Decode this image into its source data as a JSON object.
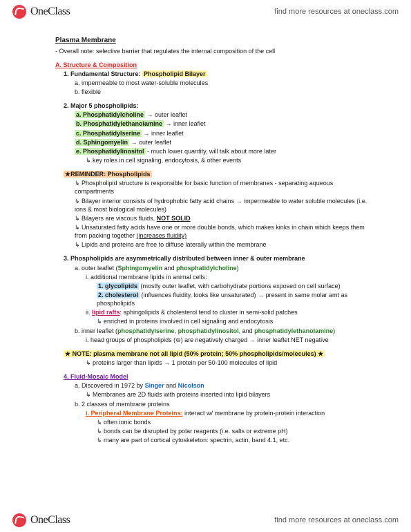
{
  "brand": {
    "name": "OneClass",
    "tagline": "find more resources at oneclass.com"
  },
  "title": "Plasma Membrane",
  "overall": "- Overall note: selective barrier that regulates the internal composition of the cell",
  "A": {
    "heading": "A. Structure & Composition",
    "one": {
      "label": "1. Fundamental Structure:",
      "hl": "Phospholipid Bilayer",
      "a": "a. impermeable to most water-soluble molecules",
      "b": "b. flexible"
    },
    "two": {
      "label": "2. Major 5 phospholipids:",
      "a": {
        "name": "a. Phosphatidylcholine",
        "arrow": "→ outer leaflet"
      },
      "b": {
        "name": "b. Phosphatidylethanolamine",
        "arrow": "→ inner leaflet"
      },
      "c": {
        "name": "c. Phosphatidylserine",
        "arrow": "→ inner leaflet"
      },
      "d": {
        "name": "d. Sphingomyelin",
        "arrow": "→ outer leaflet"
      },
      "e": {
        "name": "e. Phosphatidylinositol",
        "note": "- much lower quantity, will talk about more later"
      },
      "e2": "↳ key roles in cell signaling, endocytosis, & other events"
    },
    "reminder": {
      "hl": "★REMINDER: Phospholipids",
      "r1": "↳ Phospholipid structure is responsible for basic function of membranes - separating aqueous compartments",
      "r2": "↳ Bilayer interior consists of hydrophobic fatty acid chains → impermeable to water soluble molecules (i.e. ions & most biological molecules)",
      "r3a": "↳ Bilayers are viscous fluids, ",
      "r3b": "NOT SOLID",
      "r4a": "↳ Unsaturated fatty acids have one or more double bonds, which makes kinks in chain which keeps them from packing together ",
      "r4b": "(increases fluidity)",
      "r5": "↳ Lipids and proteins are free to diffuse laterally within the membrane"
    },
    "three": {
      "label": "3. Phospholipids are asymmetrically distributed between inner & outer membrane",
      "a": {
        "pre": "a. outer leaflet (",
        "s1": "Sphingomyelin",
        "mid": " and ",
        "s2": "phosphatidylcholine",
        "post": ")"
      },
      "ai": "i. additional membrane lipids in animal cells:",
      "ai1": {
        "name": "1. glycolipids",
        "note": " (mostly outer leaflet, with carbohydrate portions exposed on cell surface)"
      },
      "ai2": {
        "name": "2. cholesterol",
        "note": " (influences fluidity, looks like unsaturated) → present in same molar amt as phospholipids"
      },
      "aii": {
        "pre": "ii. ",
        "name": "lipid rafts",
        "note": ": sphingolipids & cholesterol tend to cluster in semi-solid patches"
      },
      "aii2": "↳ enriched in proteins involved in cell signaling and endocytosis",
      "b": {
        "pre": "b. inner leaflet (",
        "s1": "phosphatidylserine",
        "c1": ", ",
        "s2": "phosphatidylinositol",
        "c2": ", and ",
        "s3": "phosphatidylethanolamine",
        "post": ")"
      },
      "bi": "i. head groups of phospholipids (⊖) are negatively charged → inner leaflet NET negative"
    },
    "note": {
      "hl": "★ NOTE: plasma membrane not all lipid (50% protein; 50% phospholipids/molecules) ★",
      "sub": "↳ proteins larger than lipids → 1 protein per 50-100 molecules of lipid"
    },
    "four": {
      "label": "4. Fluid-Mosaic Model",
      "a": {
        "pre": "a. Discovered in 1972 by ",
        "s1": "Singer",
        "mid": " and ",
        "s2": "Nicolson"
      },
      "a2": "↳ Membranes are 2D fluids with proteins inserted into lipid bilayers",
      "b": "b. 2 classes of membrane proteins",
      "bi": {
        "name": "i. Peripheral Membrane Proteins:",
        "note": " interact w/ membrane by protein-protein interaction"
      },
      "bi1": "↳ often ionic bonds",
      "bi2": "↳ bonds can be disrupted by polar reagents (i.e. salts or extreme pH)",
      "bi3": "↳ many are part of cortical cytoskeleton: spectrin, actin, band 4.1, etc."
    }
  }
}
